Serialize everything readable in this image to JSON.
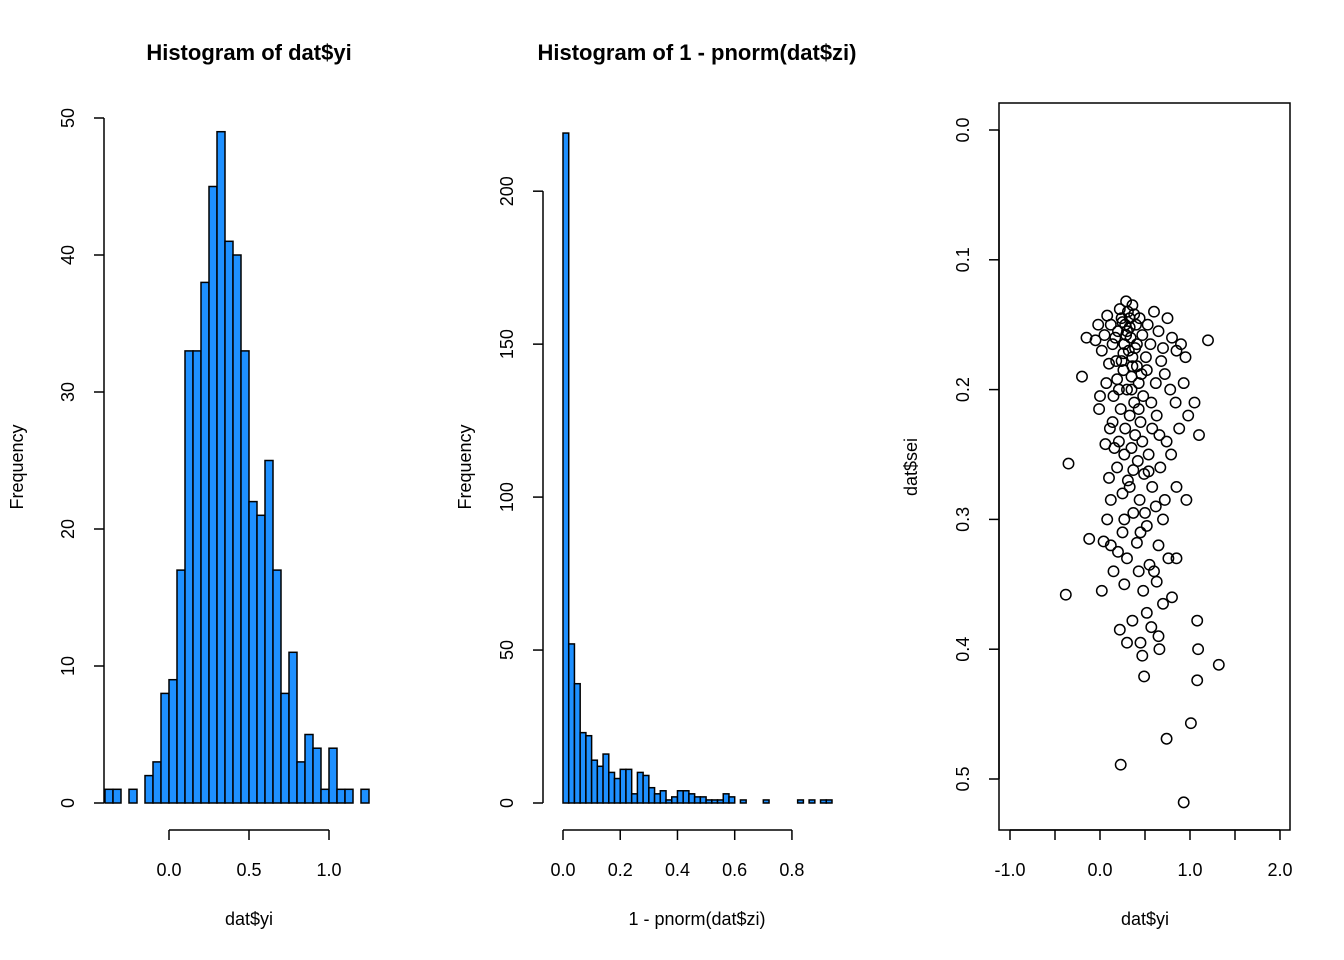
{
  "colors": {
    "bar_fill": "#1E90FF",
    "stroke": "#000000",
    "background": "#ffffff"
  },
  "chart_data": [
    {
      "type": "bar",
      "title": "Histogram of dat$yi",
      "xlabel": "dat$yi",
      "ylabel": "Frequency",
      "xlim": [
        -0.4,
        1.35
      ],
      "ylim": [
        0,
        50
      ],
      "xticks": [
        0.0,
        0.5,
        1.0
      ],
      "xtick_labels": [
        "0.0",
        "0.5",
        "1.0"
      ],
      "yticks": [
        0,
        10,
        20,
        30,
        40,
        50
      ],
      "ytick_labels": [
        "0",
        "10",
        "20",
        "30",
        "40",
        "50"
      ],
      "bin_width": 0.05,
      "bin_start": -0.4,
      "values": [
        1,
        1,
        0,
        1,
        0,
        2,
        3,
        8,
        9,
        17,
        33,
        33,
        38,
        45,
        49,
        41,
        40,
        33,
        22,
        21,
        25,
        17,
        8,
        11,
        3,
        5,
        4,
        1,
        4,
        1,
        1,
        0,
        1
      ]
    },
    {
      "type": "bar",
      "title": "Histogram of 1 - pnorm(dat$zi)",
      "xlabel": "1 - pnorm(dat$zi)",
      "ylabel": "Frequency",
      "xlim": [
        0,
        0.94
      ],
      "ylim": [
        0,
        220
      ],
      "xticks": [
        0.0,
        0.2,
        0.4,
        0.6,
        0.8
      ],
      "xtick_labels": [
        "0.0",
        "0.2",
        "0.4",
        "0.6",
        "0.8"
      ],
      "yticks": [
        0,
        50,
        100,
        150,
        200
      ],
      "ytick_labels": [
        "0",
        "50",
        "100",
        "150",
        "200"
      ],
      "bin_width": 0.02,
      "bin_start": 0,
      "values": [
        219,
        52,
        39,
        23,
        22,
        14,
        12,
        16,
        10,
        8,
        11,
        11,
        3,
        10,
        9,
        5,
        3,
        4,
        1,
        2,
        4,
        4,
        3,
        2,
        2,
        1,
        1,
        1,
        3,
        2,
        0,
        1,
        0,
        0,
        0,
        1,
        0,
        0,
        0,
        0,
        0,
        1,
        0,
        1,
        0,
        1,
        1
      ]
    },
    {
      "type": "scatter",
      "xlabel": "dat$yi",
      "ylabel": "dat$sei",
      "xlim": [
        -1.1,
        2.1
      ],
      "ylim": [
        0.54,
        -0.02
      ],
      "y_reversed": true,
      "xticks": [
        -1.0,
        -0.5,
        0.0,
        0.5,
        1.0,
        1.5,
        2.0
      ],
      "xtick_labels": [
        "-1.0",
        "",
        "0.0",
        "",
        "1.0",
        "",
        "2.0"
      ],
      "yticks": [
        0.0,
        0.1,
        0.2,
        0.3,
        0.4,
        0.5
      ],
      "ytick_labels": [
        "0.0",
        "0.1",
        "0.2",
        "0.3",
        "0.4",
        "0.5"
      ],
      "points": [
        [
          0.31,
          0.14
        ],
        [
          0.33,
          0.145
        ],
        [
          0.28,
          0.15
        ],
        [
          0.36,
          0.135
        ],
        [
          0.25,
          0.148
        ],
        [
          0.3,
          0.155
        ],
        [
          0.38,
          0.142
        ],
        [
          0.22,
          0.138
        ],
        [
          0.34,
          0.16
        ],
        [
          0.27,
          0.165
        ],
        [
          0.4,
          0.15
        ],
        [
          0.2,
          0.155
        ],
        [
          0.32,
          0.17
        ],
        [
          0.29,
          0.132
        ],
        [
          0.44,
          0.145
        ],
        [
          0.17,
          0.16
        ],
        [
          0.36,
          0.175
        ],
        [
          0.24,
          0.178
        ],
        [
          0.47,
          0.158
        ],
        [
          0.12,
          0.15
        ],
        [
          0.41,
          0.182
        ],
        [
          0.26,
          0.185
        ],
        [
          0.53,
          0.15
        ],
        [
          0.08,
          0.143
        ],
        [
          0.35,
          0.19
        ],
        [
          0.19,
          0.192
        ],
        [
          0.56,
          0.165
        ],
        [
          0.05,
          0.158
        ],
        [
          0.43,
          0.195
        ],
        [
          0.3,
          0.2
        ],
        [
          0.6,
          0.14
        ],
        [
          0.02,
          0.17
        ],
        [
          0.48,
          0.205
        ],
        [
          0.15,
          0.205
        ],
        [
          0.65,
          0.155
        ],
        [
          0.1,
          0.18
        ],
        [
          0.38,
          0.21
        ],
        [
          0.23,
          0.215
        ],
        [
          0.7,
          0.168
        ],
        [
          -0.02,
          0.15
        ],
        [
          0.52,
          0.185
        ],
        [
          0.33,
          0.22
        ],
        [
          0.75,
          0.145
        ],
        [
          -0.05,
          0.162
        ],
        [
          0.45,
          0.225
        ],
        [
          0.14,
          0.225
        ],
        [
          0.8,
          0.16
        ],
        [
          0.62,
          0.195
        ],
        [
          0.28,
          0.23
        ],
        [
          0.39,
          0.235
        ],
        [
          0.68,
          0.178
        ],
        [
          0.07,
          0.195
        ],
        [
          0.57,
          0.21
        ],
        [
          0.21,
          0.24
        ],
        [
          0.85,
          0.17
        ],
        [
          0.47,
          0.24
        ],
        [
          0.0,
          0.205
        ],
        [
          0.72,
          0.188
        ],
        [
          0.35,
          0.245
        ],
        [
          0.9,
          0.165
        ],
        [
          0.16,
          0.245
        ],
        [
          0.63,
          0.22
        ],
        [
          0.54,
          0.25
        ],
        [
          -0.01,
          0.215
        ],
        [
          0.78,
          0.2
        ],
        [
          0.27,
          0.25
        ],
        [
          0.42,
          0.255
        ],
        [
          0.95,
          0.175
        ],
        [
          0.11,
          0.23
        ],
        [
          0.66,
          0.235
        ],
        [
          0.37,
          0.262
        ],
        [
          0.84,
          0.21
        ],
        [
          0.49,
          0.265
        ],
        [
          0.31,
          0.27
        ],
        [
          0.58,
          0.275
        ],
        [
          0.74,
          0.24
        ],
        [
          0.25,
          0.28
        ],
        [
          0.44,
          0.285
        ],
        [
          0.93,
          0.195
        ],
        [
          0.62,
          0.29
        ],
        [
          0.37,
          0.295
        ],
        [
          0.12,
          0.285
        ],
        [
          0.7,
          0.3
        ],
        [
          0.52,
          0.305
        ],
        [
          0.85,
          0.275
        ],
        [
          0.27,
          0.3
        ],
        [
          0.45,
          0.31
        ],
        [
          0.65,
          0.32
        ],
        [
          0.3,
          0.33
        ],
        [
          0.08,
          0.3
        ],
        [
          0.55,
          0.335
        ],
        [
          0.76,
          0.33
        ],
        [
          0.2,
          0.325
        ],
        [
          0.43,
          0.34
        ],
        [
          0.63,
          0.348
        ],
        [
          0.85,
          0.33
        ],
        [
          0.15,
          0.34
        ],
        [
          0.48,
          0.355
        ],
        [
          0.7,
          0.365
        ],
        [
          0.27,
          0.35
        ],
        [
          -0.38,
          0.358
        ],
        [
          0.02,
          0.355
        ],
        [
          0.52,
          0.372
        ],
        [
          0.8,
          0.36
        ],
        [
          0.36,
          0.378
        ],
        [
          0.57,
          0.383
        ],
        [
          0.22,
          0.385
        ],
        [
          0.65,
          0.39
        ],
        [
          0.45,
          0.395
        ],
        [
          1.08,
          0.378
        ],
        [
          0.3,
          0.395
        ],
        [
          0.66,
          0.4
        ],
        [
          1.09,
          0.4
        ],
        [
          0.47,
          0.405
        ],
        [
          1.32,
          0.412
        ],
        [
          0.49,
          0.421
        ],
        [
          1.08,
          0.424
        ],
        [
          1.01,
          0.457
        ],
        [
          0.74,
          0.469
        ],
        [
          0.23,
          0.489
        ],
        [
          0.93,
          0.518
        ],
        [
          -0.35,
          0.257
        ],
        [
          -0.12,
          0.315
        ],
        [
          0.04,
          0.317
        ],
        [
          1.2,
          0.162
        ],
        [
          1.1,
          0.235
        ],
        [
          1.05,
          0.21
        ],
        [
          -0.15,
          0.16
        ],
        [
          0.96,
          0.285
        ],
        [
          -0.2,
          0.19
        ],
        [
          0.12,
          0.32
        ],
        [
          0.35,
          0.2
        ],
        [
          0.41,
          0.165
        ],
        [
          0.26,
          0.172
        ],
        [
          0.18,
          0.178
        ],
        [
          0.46,
          0.188
        ],
        [
          0.33,
          0.152
        ],
        [
          0.29,
          0.158
        ],
        [
          0.39,
          0.168
        ],
        [
          0.24,
          0.145
        ],
        [
          0.51,
          0.175
        ],
        [
          0.14,
          0.165
        ],
        [
          0.36,
          0.182
        ],
        [
          0.21,
          0.2
        ],
        [
          0.58,
          0.23
        ],
        [
          0.43,
          0.215
        ],
        [
          0.06,
          0.242
        ],
        [
          0.67,
          0.26
        ],
        [
          0.33,
          0.275
        ],
        [
          0.88,
          0.23
        ],
        [
          0.79,
          0.25
        ],
        [
          0.54,
          0.263
        ],
        [
          0.19,
          0.26
        ],
        [
          0.41,
          0.318
        ],
        [
          0.72,
          0.285
        ],
        [
          0.6,
          0.34
        ],
        [
          0.98,
          0.22
        ],
        [
          0.25,
          0.31
        ],
        [
          0.5,
          0.295
        ],
        [
          0.1,
          0.268
        ]
      ]
    }
  ]
}
